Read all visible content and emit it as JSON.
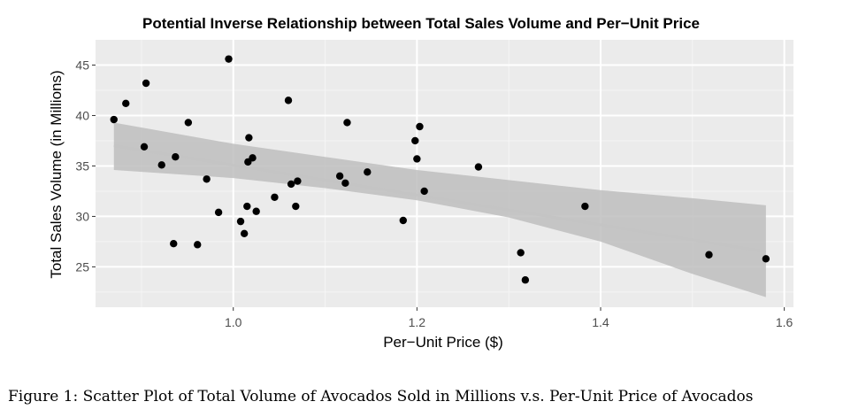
{
  "chart_data": {
    "type": "scatter",
    "title": "Potential Inverse Relationship between Total Sales Volume and Per−Unit Price",
    "xlabel": "Per−Unit Price ($)",
    "ylabel": "Total Sales Volume (in Millions)",
    "xlim": [
      0.85,
      1.61
    ],
    "ylim": [
      21,
      47.5
    ],
    "x_ticks": [
      1.0,
      1.2,
      1.4,
      1.6
    ],
    "x_tick_labels": [
      "1.0",
      "1.2",
      "1.4",
      "1.6"
    ],
    "y_ticks": [
      25,
      30,
      35,
      40,
      45
    ],
    "y_tick_labels": [
      "25",
      "30",
      "35",
      "40",
      "45"
    ],
    "grid": true,
    "points": [
      {
        "x": 0.87,
        "y": 39.6
      },
      {
        "x": 0.883,
        "y": 41.2
      },
      {
        "x": 0.903,
        "y": 36.9
      },
      {
        "x": 0.905,
        "y": 43.2
      },
      {
        "x": 0.922,
        "y": 35.1
      },
      {
        "x": 0.935,
        "y": 27.3
      },
      {
        "x": 0.937,
        "y": 35.9
      },
      {
        "x": 0.951,
        "y": 39.3
      },
      {
        "x": 0.961,
        "y": 27.2
      },
      {
        "x": 0.971,
        "y": 33.7
      },
      {
        "x": 0.984,
        "y": 30.4
      },
      {
        "x": 0.995,
        "y": 45.6
      },
      {
        "x": 1.008,
        "y": 29.5
      },
      {
        "x": 1.012,
        "y": 28.3
      },
      {
        "x": 1.015,
        "y": 31.0
      },
      {
        "x": 1.016,
        "y": 35.4
      },
      {
        "x": 1.017,
        "y": 37.8
      },
      {
        "x": 1.021,
        "y": 35.8
      },
      {
        "x": 1.025,
        "y": 30.5
      },
      {
        "x": 1.045,
        "y": 31.9
      },
      {
        "x": 1.06,
        "y": 41.5
      },
      {
        "x": 1.063,
        "y": 33.2
      },
      {
        "x": 1.068,
        "y": 31.0
      },
      {
        "x": 1.07,
        "y": 33.5
      },
      {
        "x": 1.116,
        "y": 34.0
      },
      {
        "x": 1.122,
        "y": 33.3
      },
      {
        "x": 1.124,
        "y": 39.3
      },
      {
        "x": 1.146,
        "y": 34.4
      },
      {
        "x": 1.185,
        "y": 29.6
      },
      {
        "x": 1.198,
        "y": 37.5
      },
      {
        "x": 1.2,
        "y": 35.7
      },
      {
        "x": 1.203,
        "y": 38.9
      },
      {
        "x": 1.208,
        "y": 32.5
      },
      {
        "x": 1.267,
        "y": 34.9
      },
      {
        "x": 1.313,
        "y": 26.4
      },
      {
        "x": 1.318,
        "y": 23.7
      },
      {
        "x": 1.383,
        "y": 31.0
      },
      {
        "x": 1.518,
        "y": 26.2
      },
      {
        "x": 1.58,
        "y": 25.8
      }
    ],
    "trend_line": {
      "x": [
        0.87,
        1.58
      ],
      "y": [
        37.0,
        26.5
      ]
    },
    "confidence_band": {
      "x": [
        0.87,
        1.0,
        1.1,
        1.2,
        1.3,
        1.4,
        1.5,
        1.58
      ],
      "upper": [
        39.3,
        37.2,
        35.9,
        34.6,
        33.6,
        32.6,
        31.8,
        31.1
      ],
      "lower": [
        34.6,
        33.8,
        32.8,
        31.6,
        29.9,
        27.5,
        24.3,
        22.0
      ]
    },
    "colors": {
      "panel": "#ebebeb",
      "grid_major": "#ffffff",
      "grid_minor": "#f5f5f5",
      "points": "#000000",
      "band": "#bebebe",
      "trend": "#c4c4c4"
    }
  },
  "caption": "Figure 1:  Scatter Plot of Total Volume of Avocados Sold in Millions v.s.  Per-Unit Price of Avocados"
}
